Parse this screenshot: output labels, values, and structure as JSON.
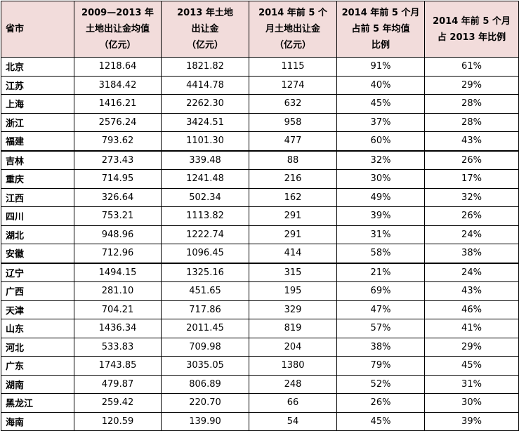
{
  "headers": [
    {
      "key": "province",
      "lines": [
        "省市"
      ]
    },
    {
      "key": "avg_2009_2013",
      "lines": [
        "2009—2013 年",
        "土地出让金均值",
        "（亿元）"
      ]
    },
    {
      "key": "y2013",
      "lines": [
        "2013 年土地",
        "出让金",
        "（亿元）"
      ]
    },
    {
      "key": "first5m_2014",
      "lines": [
        "2014 年前 5 个",
        "月土地出让金",
        "（亿元）"
      ]
    },
    {
      "key": "ratio_avg",
      "lines": [
        "2014 年前 5 个月",
        "占前 5 年均值",
        "比例"
      ]
    },
    {
      "key": "ratio_2013",
      "lines": [
        "2014 年前 5 个月",
        "占 2013 年比例"
      ]
    }
  ],
  "rows": [
    [
      "北京",
      "1218.64",
      "1821.82",
      "1115",
      "91%",
      "61%"
    ],
    [
      "江苏",
      "3184.42",
      "4414.78",
      "1274",
      "40%",
      "29%"
    ],
    [
      "上海",
      "1416.21",
      "2262.30",
      "632",
      "45%",
      "28%"
    ],
    [
      "浙江",
      "2576.24",
      "3424.51",
      "958",
      "37%",
      "28%"
    ],
    [
      "福建",
      "793.62",
      "1101.30",
      "477",
      "60%",
      "43%"
    ],
    [
      "吉林",
      "273.43",
      "339.48",
      "88",
      "32%",
      "26%"
    ],
    [
      "重庆",
      "714.95",
      "1241.48",
      "216",
      "30%",
      "17%"
    ],
    [
      "江西",
      "326.64",
      "502.34",
      "162",
      "49%",
      "32%"
    ],
    [
      "四川",
      "753.21",
      "1113.82",
      "291",
      "39%",
      "26%"
    ],
    [
      "湖北",
      "948.96",
      "1222.74",
      "291",
      "31%",
      "24%"
    ],
    [
      "安徽",
      "712.96",
      "1096.45",
      "414",
      "58%",
      "38%"
    ],
    [
      "辽宁",
      "1494.15",
      "1325.16",
      "315",
      "21%",
      "24%"
    ],
    [
      "广西",
      "281.10",
      "451.65",
      "195",
      "69%",
      "43%"
    ],
    [
      "天津",
      "704.21",
      "717.86",
      "329",
      "47%",
      "46%"
    ],
    [
      "山东",
      "1436.34",
      "2011.45",
      "819",
      "57%",
      "41%"
    ],
    [
      "河北",
      "533.83",
      "709.98",
      "204",
      "38%",
      "29%"
    ],
    [
      "广东",
      "1743.85",
      "3035.05",
      "1380",
      "79%",
      "45%"
    ],
    [
      "湖南",
      "479.87",
      "806.89",
      "248",
      "52%",
      "31%"
    ],
    [
      "黑龙江",
      "259.42",
      "220.70",
      "66",
      "26%",
      "30%"
    ],
    [
      "海南",
      "120.59",
      "139.90",
      "54",
      "45%",
      "39%"
    ]
  ]
}
